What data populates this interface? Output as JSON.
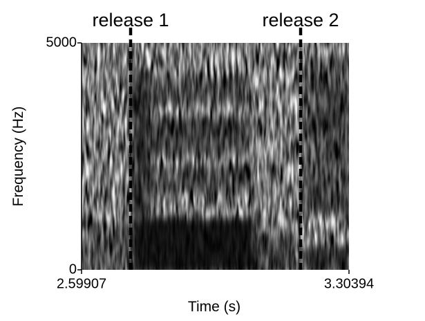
{
  "chart_data": {
    "type": "spectrogram",
    "x_label": "Time (s)",
    "y_label": "Frequency (Hz)",
    "xlim": [
      2.59907,
      3.30394
    ],
    "xticks": [
      2.59907,
      3.30394
    ],
    "ylim": [
      0,
      5000
    ],
    "yticks": [
      0,
      5000
    ],
    "annotations": [
      {
        "text": "release 1",
        "x": 2.7284
      },
      {
        "text": "release 2",
        "x": 3.1765
      }
    ]
  }
}
